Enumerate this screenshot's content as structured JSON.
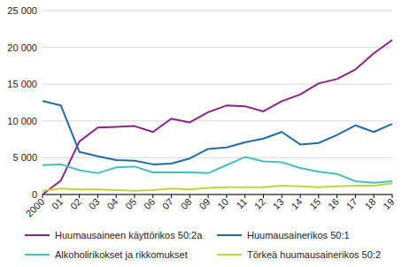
{
  "chart_data": {
    "type": "line",
    "categories": [
      "2000",
      "01",
      "02",
      "03",
      "04",
      "05",
      "06",
      "07",
      "08",
      "09",
      "10",
      "11",
      "12",
      "13",
      "14",
      "15",
      "16",
      "17",
      "18",
      "19"
    ],
    "series": [
      {
        "name": "Huumausaineen käyttörikos 50:2a",
        "color": "#8c2286",
        "values": [
          0,
          1900,
          7200,
          9100,
          9200,
          9300,
          8500,
          10300,
          9800,
          11200,
          12100,
          12000,
          11300,
          12700,
          13600,
          15100,
          15700,
          17000,
          19200,
          21000
        ]
      },
      {
        "name": "Huumausainerikos 50:1",
        "color": "#1f6ca8",
        "values": [
          12700,
          12100,
          5800,
          5200,
          4700,
          4600,
          4100,
          4200,
          4900,
          6200,
          6400,
          7100,
          7600,
          8500,
          6800,
          7000,
          8100,
          9400,
          8500,
          9600
        ]
      },
      {
        "name": "Alkoholirikokset ja rikkomukset",
        "color": "#45c0c0",
        "values": [
          4000,
          4100,
          3300,
          2900,
          3700,
          3800,
          3000,
          3000,
          3000,
          2900,
          4000,
          5100,
          4500,
          4400,
          3600,
          3100,
          2800,
          1800,
          1600,
          1800
        ]
      },
      {
        "name": "Törkeä huumausainerikos 50:2",
        "color": "#c1d53b",
        "values": [
          500,
          800,
          700,
          700,
          600,
          500,
          600,
          800,
          700,
          900,
          1000,
          1000,
          1000,
          1200,
          1100,
          1000,
          1100,
          1200,
          1200,
          1500
        ]
      }
    ],
    "ylim": [
      0,
      25000
    ],
    "yticks": [
      0,
      {
        "value": 5000,
        "label": "5 000"
      },
      {
        "value": 10000,
        "label": "10 000"
      },
      {
        "value": 15000,
        "label": "15 000"
      },
      {
        "value": 20000,
        "label": "20 000"
      },
      {
        "value": 25000,
        "label": "25 000"
      }
    ],
    "grid": true,
    "legend": "bottom"
  }
}
